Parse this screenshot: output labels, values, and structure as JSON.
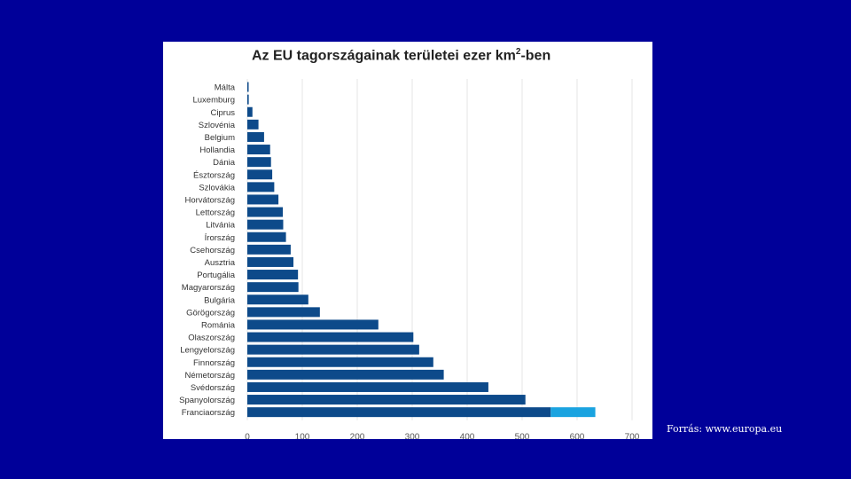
{
  "source_note": "Forrás: www.europa.eu",
  "chart_data": {
    "type": "bar",
    "orientation": "horizontal",
    "title": "Az EU tagországainak területei ezer km",
    "title_superscript": "2",
    "title_suffix": "-ben",
    "xlabel": "",
    "ylabel": "",
    "xlim": [
      0,
      700
    ],
    "xticks": [
      "0",
      "100",
      "200",
      "300",
      "400",
      "500",
      "600",
      "700"
    ],
    "grid": true,
    "categories": [
      "Málta",
      "Luxemburg",
      "Ciprus",
      "Szlovénia",
      "Belgium",
      "Hollandia",
      "Dánia",
      "Észtország",
      "Szlovákia",
      "Horvátország",
      "Lettország",
      "Litvánia",
      "Írország",
      "Csehország",
      "Ausztria",
      "Portugália",
      "Magyarország",
      "Bulgária",
      "Görögország",
      "Románia",
      "Olaszország",
      "Lengyelország",
      "Finnország",
      "Németország",
      "Svédország",
      "Spanyolország",
      "Franciaország"
    ],
    "values": [
      0.3,
      2.6,
      9.3,
      20.3,
      30.5,
      41.5,
      43.1,
      45.3,
      49.0,
      56.6,
      64.6,
      65.3,
      70.3,
      78.9,
      83.9,
      92.2,
      93.0,
      111.0,
      132.0,
      238.4,
      302.1,
      312.7,
      338.4,
      357.4,
      438.6,
      506.0,
      633.2
    ],
    "highlight": {
      "category": "Franciaország",
      "base_value": 552.0
    },
    "colors": {
      "bar": "#0d4a8a",
      "highlight": "#1aa3e0",
      "grid": "#e4e4e4",
      "label": "#333333"
    }
  }
}
